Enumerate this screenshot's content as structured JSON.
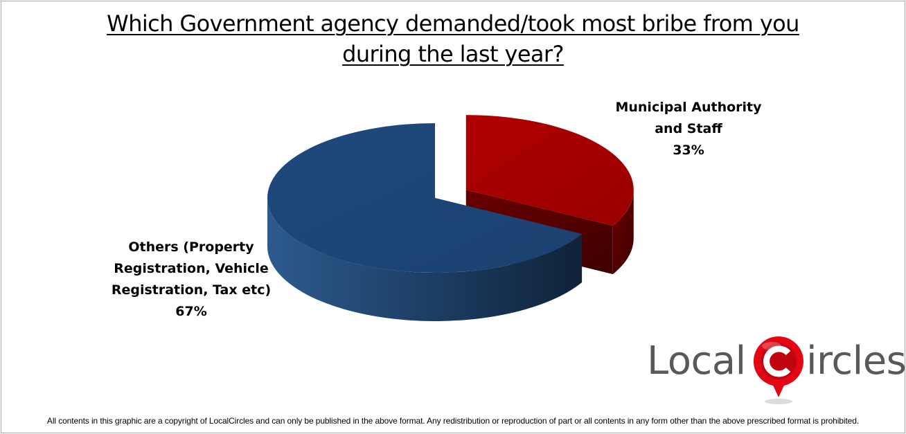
{
  "chart_data": {
    "type": "pie",
    "title_lines": [
      "Which Government agency demanded/took most bribe from you",
      "during the last year?"
    ],
    "slices": [
      {
        "label_lines": [
          "Municipal Authority",
          "and Staff"
        ],
        "value_label": "33%",
        "value": 33,
        "color": "#a50000",
        "side_color": "#5e0000",
        "exploded": true
      },
      {
        "label_lines": [
          "Others (Property",
          "Registration, Vehicle",
          "Registration, Tax etc)"
        ],
        "value_label": "67%",
        "value": 67,
        "color": "#1f497d",
        "side_color": "#15304f",
        "exploded": false
      }
    ],
    "style": "3d-pie"
  },
  "logo": {
    "word1": "Local",
    "word2": "ircles",
    "text_color": "#595959",
    "accent": "#e30613"
  },
  "footer": {
    "text": "All contents in this graphic are a copyright of LocalCircles and can only be published in the above format. Any redistribution or reproduction of part or all contents in any form other than the above prescribed format is prohibited."
  },
  "colors": {
    "frame": "#a6a6a6",
    "background": "#ffffff"
  }
}
